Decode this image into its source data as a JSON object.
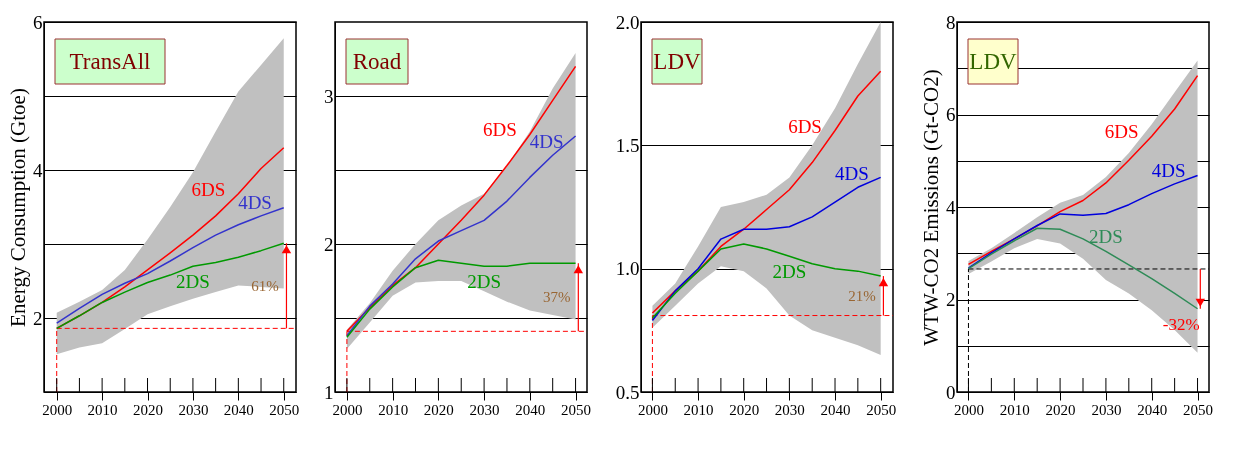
{
  "chart_data": [
    {
      "type": "line",
      "title": "TransAll",
      "ylabel": "Energy Consumption (Gtoe)",
      "x": [
        2000,
        2005,
        2010,
        2015,
        2020,
        2025,
        2030,
        2035,
        2040,
        2045,
        2050
      ],
      "xlim": [
        1997.2,
        2052.7
      ],
      "xticks": [
        2000,
        {
          "value": 2005,
          "label": null
        },
        2010,
        {
          "value": 2015,
          "label": null
        },
        2020,
        {
          "value": 2025,
          "label": null
        },
        2030,
        {
          "value": 2035,
          "label": null
        },
        2040,
        {
          "value": 2045,
          "label": null
        },
        2050
      ],
      "ylim": [
        1,
        6
      ],
      "yticks": [
        {
          "value": 1,
          "label": null
        },
        2,
        {
          "value": 3,
          "label": null
        },
        4,
        {
          "value": 5,
          "label": null
        },
        6
      ],
      "grid": "y",
      "line_style": "solid",
      "series": [
        {
          "name": "6DS",
          "color": "#ff0000",
          "values": [
            1.86,
            2.03,
            2.21,
            2.42,
            2.65,
            2.88,
            3.12,
            3.38,
            3.68,
            4.02,
            4.3
          ]
        },
        {
          "name": "4DS",
          "color": "#3333cc",
          "values": [
            1.93,
            2.13,
            2.32,
            2.47,
            2.6,
            2.77,
            2.95,
            3.12,
            3.26,
            3.38,
            3.49
          ],
          "lower": [
            1.51,
            1.6,
            1.66,
            1.85,
            2.05,
            2.16,
            2.26,
            2.35,
            2.44,
            2.42,
            2.4
          ],
          "upper": [
            2.07,
            2.22,
            2.38,
            2.65,
            3.06,
            3.5,
            3.97,
            4.52,
            5.06,
            5.42,
            5.78
          ]
        },
        {
          "name": "2DS",
          "color": "#009900",
          "values": [
            1.86,
            2.03,
            2.21,
            2.35,
            2.48,
            2.58,
            2.7,
            2.75,
            2.82,
            2.91,
            3.01
          ]
        }
      ],
      "ref_lines": [
        {
          "axis": "y",
          "value": 1.86,
          "color": "#ff0000",
          "line_style": "dashed"
        },
        {
          "axis": "x",
          "value": 2000,
          "color": "#ff0000",
          "line_style": "dashed"
        }
      ],
      "annotations": [
        "61%"
      ]
    },
    {
      "type": "line",
      "title": "Road",
      "x": [
        2000,
        2005,
        2010,
        2015,
        2020,
        2025,
        2030,
        2035,
        2040,
        2045,
        2050
      ],
      "xlim": [
        1997.4,
        2052.5
      ],
      "xticks": [
        2000,
        {
          "value": 2005,
          "label": null
        },
        2010,
        {
          "value": 2015,
          "label": null
        },
        2020,
        {
          "value": 2025,
          "label": null
        },
        2030,
        {
          "value": 2035,
          "label": null
        },
        2040,
        {
          "value": 2045,
          "label": null
        },
        2050
      ],
      "ylim": [
        1,
        3.5
      ],
      "yticks": [
        1,
        {
          "value": 1.5,
          "label": null
        },
        2,
        {
          "value": 2.5,
          "label": null
        },
        3
      ],
      "grid": "y",
      "line_style": "solid",
      "series": [
        {
          "name": "6DS",
          "color": "#ff0000",
          "values": [
            1.41,
            1.57,
            1.72,
            1.84,
            2.0,
            2.16,
            2.33,
            2.53,
            2.74,
            2.97,
            3.2
          ]
        },
        {
          "name": "4DS",
          "color": "#3333cc",
          "values": [
            1.38,
            1.58,
            1.73,
            1.9,
            2.02,
            2.09,
            2.16,
            2.29,
            2.45,
            2.6,
            2.73
          ],
          "lower": [
            1.29,
            1.47,
            1.65,
            1.74,
            1.75,
            1.75,
            1.68,
            1.61,
            1.55,
            1.52,
            1.49
          ],
          "upper": [
            1.42,
            1.6,
            1.82,
            2.0,
            2.16,
            2.26,
            2.34,
            2.53,
            2.76,
            3.05,
            3.29
          ]
        },
        {
          "name": "2DS",
          "color": "#009900",
          "values": [
            1.37,
            1.56,
            1.71,
            1.84,
            1.89,
            1.87,
            1.85,
            1.85,
            1.87,
            1.87,
            1.87
          ]
        }
      ],
      "ref_lines": [
        {
          "axis": "y",
          "value": 1.41,
          "color": "#ff0000",
          "line_style": "dashed"
        },
        {
          "axis": "x",
          "value": 2000,
          "color": "#ff0000",
          "line_style": "dashed"
        }
      ],
      "annotations": [
        "37%"
      ]
    },
    {
      "type": "line",
      "title": "LDV",
      "x": [
        2000,
        2005,
        2010,
        2015,
        2020,
        2025,
        2030,
        2035,
        2040,
        2045,
        2050
      ],
      "xlim": [
        1997.5,
        2052.7
      ],
      "xticks": [
        2000,
        {
          "value": 2005,
          "label": null
        },
        2010,
        {
          "value": 2015,
          "label": null
        },
        2020,
        {
          "value": 2025,
          "label": null
        },
        2030,
        {
          "value": 2035,
          "label": null
        },
        2040,
        {
          "value": 2045,
          "label": null
        },
        2050
      ],
      "ylim": [
        0.5,
        2.0
      ],
      "yticks": [
        0.5,
        {
          "value": 1,
          "label": "1.0"
        },
        1.5,
        {
          "value": 2,
          "label": "2.0"
        }
      ],
      "grid": "y",
      "line_style": "solid",
      "series": [
        {
          "name": "6DS",
          "color": "#ff0000",
          "values": [
            0.82,
            0.91,
            0.99,
            1.09,
            1.16,
            1.24,
            1.32,
            1.43,
            1.56,
            1.7,
            1.8
          ]
        },
        {
          "name": "4DS",
          "color": "#0000dd",
          "values": [
            0.79,
            0.91,
            1.0,
            1.12,
            1.16,
            1.16,
            1.17,
            1.21,
            1.27,
            1.33,
            1.37
          ],
          "lower": [
            0.76,
            0.85,
            0.94,
            1.01,
            0.99,
            0.92,
            0.81,
            0.75,
            0.72,
            0.69,
            0.65
          ],
          "upper": [
            0.85,
            0.94,
            1.09,
            1.25,
            1.27,
            1.3,
            1.37,
            1.5,
            1.65,
            1.83,
            2.0
          ]
        },
        {
          "name": "2DS",
          "color": "#009900",
          "values": [
            0.8,
            0.9,
            0.99,
            1.08,
            1.1,
            1.08,
            1.05,
            1.02,
            1.0,
            0.99,
            0.97
          ]
        }
      ],
      "ref_lines": [
        {
          "axis": "y",
          "value": 0.81,
          "color": "#ff0000",
          "line_style": "dashed"
        },
        {
          "axis": "x",
          "value": 2000,
          "color": "#ff0000",
          "line_style": "dashed"
        }
      ],
      "annotations": [
        "21%"
      ]
    },
    {
      "type": "line",
      "title": "LDV",
      "ylabel": "WTW-CO2 Emissions (Gt-CO2)",
      "x": [
        2000,
        2005,
        2010,
        2015,
        2020,
        2025,
        2030,
        2035,
        2040,
        2045,
        2050
      ],
      "xlim": [
        1997.5,
        2052.5
      ],
      "xticks": [
        2000,
        {
          "value": 2005,
          "label": null
        },
        2010,
        {
          "value": 2015,
          "label": null
        },
        2020,
        {
          "value": 2025,
          "label": null
        },
        2030,
        {
          "value": 2035,
          "label": null
        },
        2040,
        {
          "value": 2045,
          "label": null
        },
        2050
      ],
      "ylim": [
        0,
        8
      ],
      "yticks": [
        0,
        {
          "value": 1,
          "label": null
        },
        2,
        {
          "value": 3,
          "label": null
        },
        4,
        {
          "value": 5,
          "label": null
        },
        6,
        {
          "value": 7,
          "label": null
        },
        8
      ],
      "grid": "y",
      "line_style": "solid",
      "series": [
        {
          "name": "6DS",
          "color": "#ff0000",
          "values": [
            2.76,
            3.04,
            3.31,
            3.59,
            3.9,
            4.14,
            4.52,
            5.01,
            5.53,
            6.12,
            6.84
          ]
        },
        {
          "name": "4DS",
          "color": "#0000dd",
          "values": [
            2.68,
            3.01,
            3.31,
            3.6,
            3.85,
            3.82,
            3.86,
            4.05,
            4.29,
            4.5,
            4.68
          ],
          "lower": [
            2.55,
            2.82,
            3.11,
            3.31,
            3.21,
            2.88,
            2.42,
            2.13,
            1.77,
            1.34,
            0.85
          ],
          "upper": [
            2.83,
            3.11,
            3.44,
            3.78,
            4.09,
            4.26,
            4.65,
            5.17,
            5.79,
            6.48,
            7.17
          ]
        },
        {
          "name": "2DS",
          "color": "#2e8b57",
          "values": [
            2.67,
            2.98,
            3.27,
            3.54,
            3.52,
            3.31,
            3.04,
            2.75,
            2.45,
            2.13,
            1.8
          ]
        }
      ],
      "ref_lines": [
        {
          "axis": "y",
          "value": 2.66,
          "color": "#000000",
          "line_style": "dashed"
        },
        {
          "axis": "x",
          "value": 2000,
          "color": "#000000",
          "line_style": "dashed"
        }
      ],
      "annotations": [
        "-32%"
      ]
    }
  ]
}
